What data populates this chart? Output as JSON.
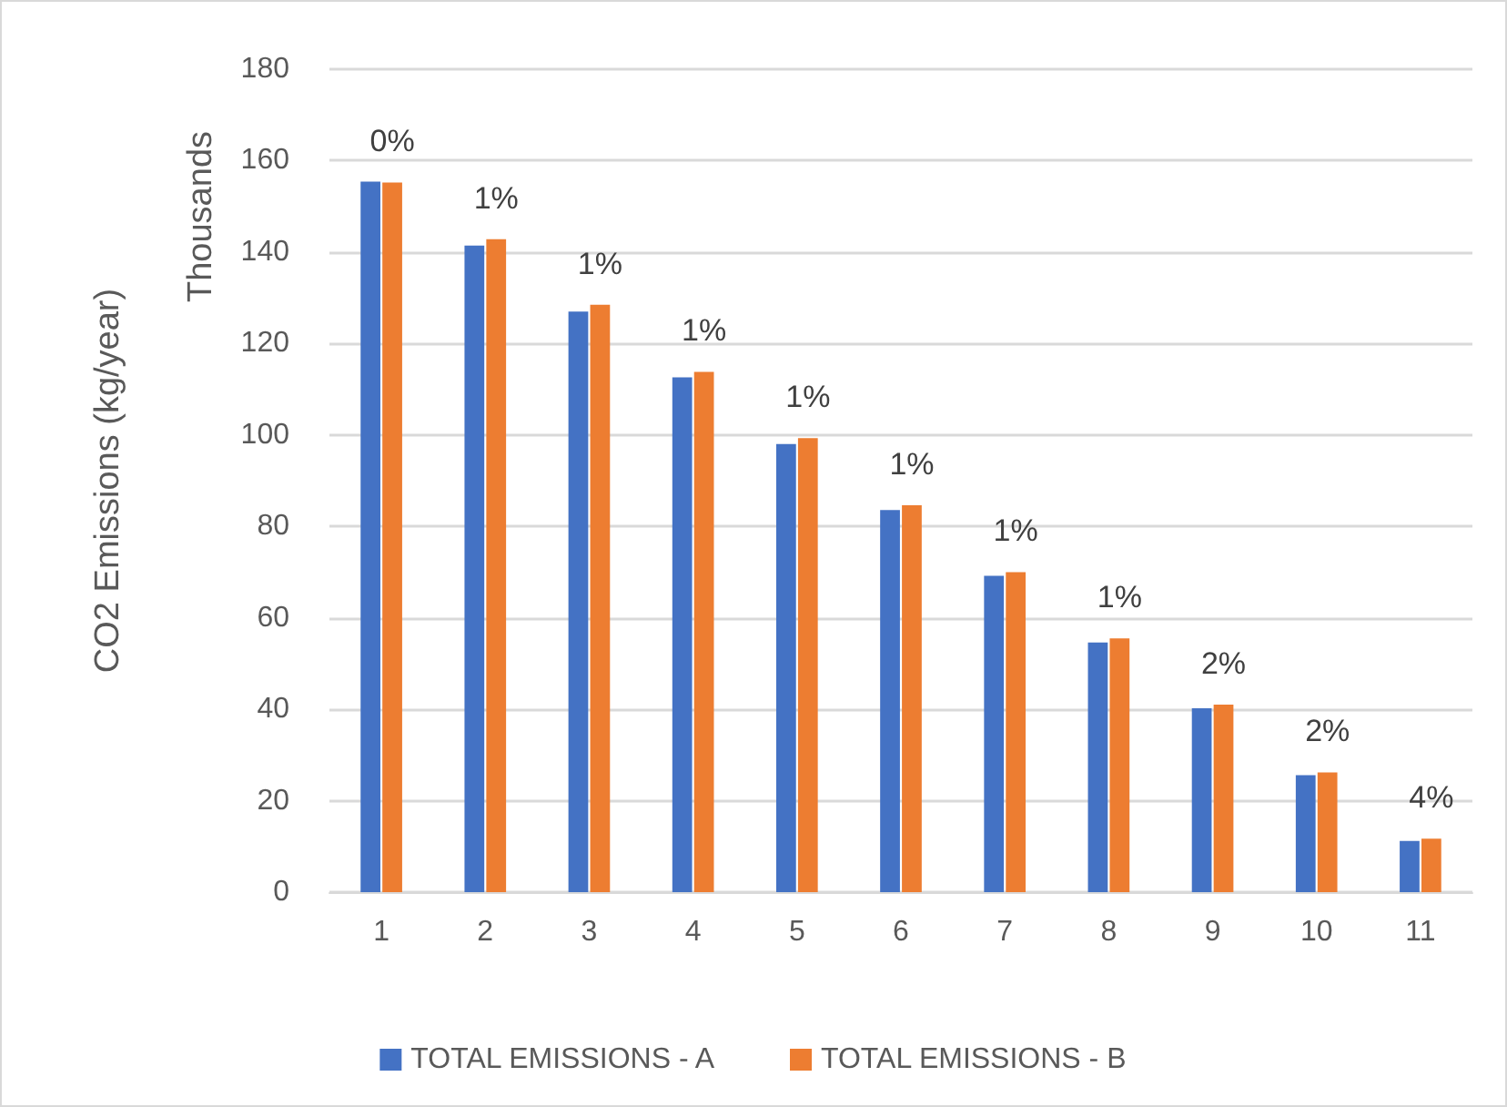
{
  "chart_data": {
    "type": "bar",
    "ylabel": "CO2 Emissions (kg/year)",
    "categories": [
      "1",
      "2",
      "3",
      "4",
      "5",
      "6",
      "7",
      "8",
      "9",
      "10",
      "11"
    ],
    "series": [
      {
        "name": "TOTAL EMISSIONS - A",
        "color": "#4472c4",
        "values": [
          155.4,
          141.4,
          127,
          112.6,
          98,
          83.6,
          69.2,
          54.6,
          40.2,
          25.6,
          11.2
        ]
      },
      {
        "name": "TOTAL EMISSIONS - B",
        "color": "#ed7d31",
        "values": [
          155.2,
          142.8,
          128.5,
          113.8,
          99.3,
          84.6,
          70,
          55.5,
          41,
          26.2,
          11.7
        ]
      }
    ],
    "ylim": [
      0,
      180
    ],
    "yticks": [
      0,
      20,
      40,
      60,
      80,
      100,
      120,
      140,
      160,
      180
    ],
    "annotations": [
      "Thousands",
      {
        "text": "0%",
        "x": "1",
        "y": 155.4
      },
      {
        "text": "1%",
        "x": "2",
        "y": 142.8
      },
      {
        "text": "1%",
        "x": "3",
        "y": 128.5
      },
      {
        "text": "1%",
        "x": "4",
        "y": 113.8
      },
      {
        "text": "1%",
        "x": "5",
        "y": 99.3
      },
      {
        "text": "1%",
        "x": "6",
        "y": 84.6
      },
      {
        "text": "1%",
        "x": "7",
        "y": 70
      },
      {
        "text": "1%",
        "x": "8",
        "y": 55.5
      },
      {
        "text": "2%",
        "x": "9",
        "y": 41
      },
      {
        "text": "2%",
        "x": "10",
        "y": 26.2
      },
      {
        "text": "4%",
        "x": "11",
        "y": 11.7
      }
    ],
    "grid": "y",
    "legend": "bottom"
  }
}
